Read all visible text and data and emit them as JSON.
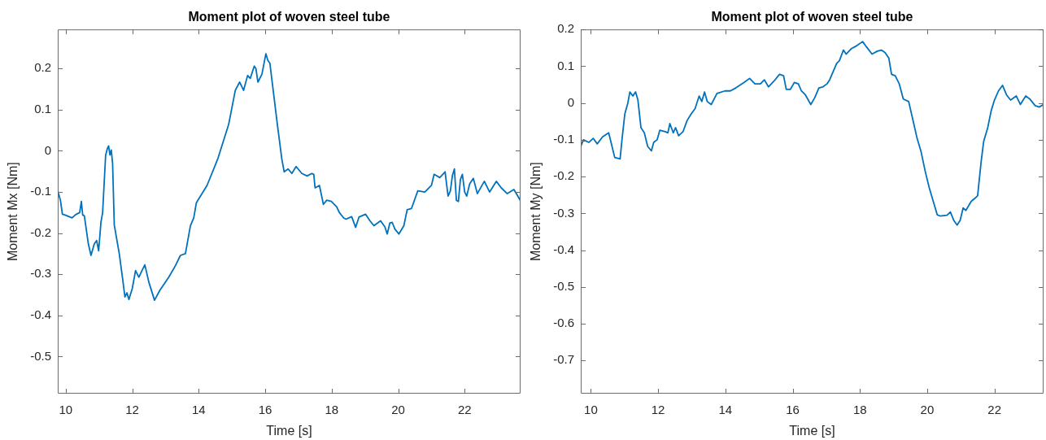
{
  "chart_data": [
    {
      "type": "line",
      "title": "Moment plot of woven steel tube",
      "xlabel": "Time [s]",
      "ylabel": "Moment Mx [Nm]",
      "x": [
        9.76,
        9.84,
        9.9,
        9.98,
        10.19,
        10.3,
        10.42,
        10.47,
        10.51,
        10.56,
        10.68,
        10.76,
        10.86,
        10.93,
        10.99,
        11.06,
        11.11,
        11.2,
        11.25,
        11.29,
        11.33,
        11.37,
        11.41,
        11.46,
        11.61,
        11.71,
        11.78,
        11.84,
        11.9,
        12.0,
        12.1,
        12.2,
        12.3,
        12.38,
        12.5,
        12.67,
        12.83,
        13.1,
        13.3,
        13.45,
        13.6,
        13.75,
        13.85,
        13.93,
        14.25,
        14.58,
        14.9,
        15.1,
        15.23,
        15.35,
        15.47,
        15.55,
        15.67,
        15.72,
        15.78,
        15.9,
        16.02,
        16.08,
        16.14,
        16.24,
        16.37,
        16.5,
        16.57,
        16.69,
        16.8,
        16.93,
        17.1,
        17.26,
        17.4,
        17.46,
        17.5,
        17.63,
        17.75,
        17.85,
        17.99,
        18.15,
        18.23,
        18.36,
        18.43,
        18.6,
        18.72,
        18.82,
        19.02,
        19.15,
        19.27,
        19.47,
        19.6,
        19.67,
        19.75,
        19.82,
        19.9,
        20.02,
        20.17,
        20.27,
        20.4,
        20.59,
        20.8,
        21.0,
        21.08,
        21.25,
        21.41,
        21.5,
        21.57,
        21.63,
        21.69,
        21.75,
        21.81,
        21.87,
        21.93,
        22.0,
        22.06,
        22.15,
        22.26,
        22.38,
        22.59,
        22.75,
        22.95,
        23.1,
        23.28,
        23.48,
        23.67
      ],
      "series": [
        {
          "color": "#0072bd",
          "values": [
            -0.097,
            -0.12,
            -0.154,
            -0.156,
            -0.163,
            -0.155,
            -0.15,
            -0.123,
            -0.156,
            -0.158,
            -0.226,
            -0.254,
            -0.226,
            -0.218,
            -0.243,
            -0.173,
            -0.15,
            -0.011,
            0.005,
            0.012,
            -0.01,
            0.002,
            -0.031,
            -0.18,
            -0.25,
            -0.31,
            -0.355,
            -0.345,
            -0.361,
            -0.335,
            -0.291,
            -0.307,
            -0.29,
            -0.277,
            -0.319,
            -0.363,
            -0.339,
            -0.307,
            -0.279,
            -0.254,
            -0.25,
            -0.182,
            -0.163,
            -0.126,
            -0.084,
            -0.018,
            0.064,
            0.147,
            0.167,
            0.147,
            0.183,
            0.176,
            0.206,
            0.2,
            0.167,
            0.186,
            0.236,
            0.22,
            0.213,
            0.147,
            0.061,
            -0.02,
            -0.051,
            -0.044,
            -0.055,
            -0.038,
            -0.055,
            -0.061,
            -0.055,
            -0.057,
            -0.09,
            -0.084,
            -0.13,
            -0.12,
            -0.123,
            -0.136,
            -0.15,
            -0.163,
            -0.166,
            -0.16,
            -0.186,
            -0.161,
            -0.154,
            -0.17,
            -0.182,
            -0.17,
            -0.185,
            -0.202,
            -0.175,
            -0.174,
            -0.19,
            -0.202,
            -0.182,
            -0.143,
            -0.14,
            -0.097,
            -0.1,
            -0.084,
            -0.057,
            -0.065,
            -0.051,
            -0.11,
            -0.097,
            -0.06,
            -0.044,
            -0.12,
            -0.123,
            -0.07,
            -0.057,
            -0.1,
            -0.11,
            -0.08,
            -0.067,
            -0.104,
            -0.074,
            -0.1,
            -0.074,
            -0.09,
            -0.104,
            -0.094,
            -0.12
          ]
        }
      ],
      "xlim": [
        9.76,
        23.68
      ],
      "ylim": [
        -0.59,
        0.295
      ],
      "xticks": [
        10,
        12,
        14,
        16,
        18,
        20,
        22
      ],
      "yticks": [
        -0.5,
        -0.4,
        -0.3,
        -0.2,
        -0.1,
        0,
        0.1,
        0.2
      ],
      "marker": "none"
    },
    {
      "type": "line",
      "title": "Moment plot of woven steel tube",
      "xlabel": "Time [s]",
      "ylabel": "Moment My [Nm]",
      "x": [
        9.7,
        9.78,
        9.94,
        10.07,
        10.19,
        10.35,
        10.53,
        10.63,
        10.71,
        10.87,
        10.93,
        11.01,
        11.1,
        11.16,
        11.25,
        11.33,
        11.4,
        11.49,
        11.59,
        11.69,
        11.8,
        11.87,
        11.97,
        12.05,
        12.21,
        12.29,
        12.35,
        12.45,
        12.52,
        12.61,
        12.74,
        12.86,
        12.98,
        13.1,
        13.22,
        13.3,
        13.38,
        13.46,
        13.58,
        13.75,
        13.99,
        14.15,
        14.31,
        14.56,
        14.72,
        14.88,
        15.04,
        15.16,
        15.28,
        15.44,
        15.61,
        15.73,
        15.81,
        15.93,
        16.05,
        16.17,
        16.26,
        16.38,
        16.54,
        16.66,
        16.78,
        16.9,
        17.02,
        17.1,
        17.31,
        17.39,
        17.51,
        17.59,
        17.75,
        17.91,
        18.08,
        18.2,
        18.36,
        18.52,
        18.64,
        18.75,
        18.86,
        18.94,
        19.05,
        19.17,
        19.29,
        19.45,
        19.57,
        19.7,
        19.82,
        19.94,
        20.06,
        20.18,
        20.3,
        20.38,
        20.59,
        20.69,
        20.79,
        20.89,
        20.98,
        21.07,
        21.15,
        21.31,
        21.42,
        21.5,
        21.6,
        21.68,
        21.8,
        21.9,
        22.0,
        22.12,
        22.24,
        22.36,
        22.48,
        22.65,
        22.77,
        22.93,
        23.05,
        23.21,
        23.33,
        23.46
      ],
      "series": [
        {
          "color": "#0072bd",
          "values": [
            -0.118,
            -0.1,
            -0.107,
            -0.096,
            -0.111,
            -0.092,
            -0.081,
            -0.118,
            -0.148,
            -0.152,
            -0.096,
            -0.03,
            0,
            0.03,
            0.019,
            0.03,
            0.008,
            -0.067,
            -0.081,
            -0.118,
            -0.13,
            -0.107,
            -0.1,
            -0.074,
            -0.078,
            -0.081,
            -0.056,
            -0.081,
            -0.067,
            -0.089,
            -0.078,
            -0.048,
            -0.03,
            -0.015,
            0.019,
            0.004,
            0.03,
            0.004,
            -0.004,
            0.026,
            0.033,
            0.033,
            0.041,
            0.056,
            0.067,
            0.052,
            0.052,
            0.063,
            0.044,
            0.059,
            0.078,
            0.074,
            0.037,
            0.037,
            0.056,
            0.052,
            0.033,
            0.022,
            -0.004,
            0.015,
            0.041,
            0.044,
            0.052,
            0.063,
            0.108,
            0.115,
            0.144,
            0.133,
            0.148,
            0.156,
            0.167,
            0.152,
            0.133,
            0.141,
            0.144,
            0.137,
            0.122,
            0.078,
            0.074,
            0.052,
            0.011,
            0.004,
            -0.044,
            -0.096,
            -0.133,
            -0.185,
            -0.23,
            -0.267,
            -0.304,
            -0.307,
            -0.305,
            -0.296,
            -0.319,
            -0.332,
            -0.319,
            -0.285,
            -0.292,
            -0.267,
            -0.259,
            -0.252,
            -0.163,
            -0.104,
            -0.067,
            -0.022,
            0.008,
            0.033,
            0.048,
            0.022,
            0.008,
            0.019,
            -0.004,
            0.019,
            0.011,
            -0.007,
            -0.011,
            -0.004
          ]
        }
      ],
      "xlim": [
        9.7,
        23.46
      ],
      "ylim": [
        -0.79,
        0.2
      ],
      "xticks": [
        10,
        12,
        14,
        16,
        18,
        20,
        22
      ],
      "yticks": [
        -0.7,
        -0.6,
        -0.5,
        -0.4,
        -0.3,
        -0.2,
        -0.1,
        0,
        0.1,
        0.2
      ],
      "marker": "none"
    }
  ]
}
